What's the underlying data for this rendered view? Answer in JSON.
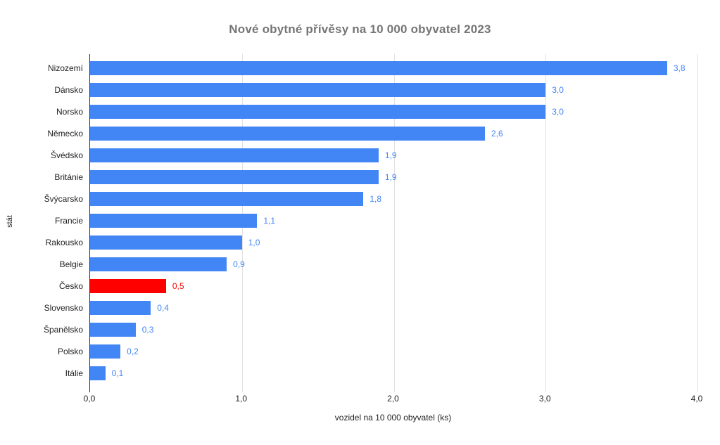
{
  "chart_data": {
    "type": "bar",
    "orientation": "horizontal",
    "title": "Nové obytné přívěsy na 10 000 obyvatel 2023",
    "xlabel": "vozidel na 10 000 obyvatel (ks)",
    "ylabel": "stát",
    "categories": [
      "Nizozemí",
      "Dánsko",
      "Norsko",
      "Německo",
      "Švédsko",
      "Británie",
      "Švýcarsko",
      "Francie",
      "Rakousko",
      "Belgie",
      "Česko",
      "Slovensko",
      "Španělsko",
      "Polsko",
      "Itálie"
    ],
    "values": [
      3.8,
      3.0,
      3.0,
      2.6,
      1.9,
      1.9,
      1.8,
      1.1,
      1.0,
      0.9,
      0.5,
      0.4,
      0.3,
      0.2,
      0.1
    ],
    "value_labels": [
      "3,8",
      "3,0",
      "3,0",
      "2,6",
      "1,9",
      "1,9",
      "1,8",
      "1,1",
      "1,0",
      "0,9",
      "0,5",
      "0,4",
      "0,3",
      "0,2",
      "0,1"
    ],
    "x_ticks": [
      "0,0",
      "1,0",
      "2,0",
      "3,0",
      "4,0"
    ],
    "xlim": [
      0,
      4
    ],
    "grid": "vertical-only",
    "legend": "none",
    "bar_color": "#4285F4",
    "value_label_color": "#4285F4",
    "highlight_category": "Česko",
    "highlight_color": "#FF0000",
    "highlight_value_label_color": "#FF0000",
    "title_color": "#757575",
    "axis_line_color": "#333333",
    "gridline_color": "#e0e0e0"
  }
}
